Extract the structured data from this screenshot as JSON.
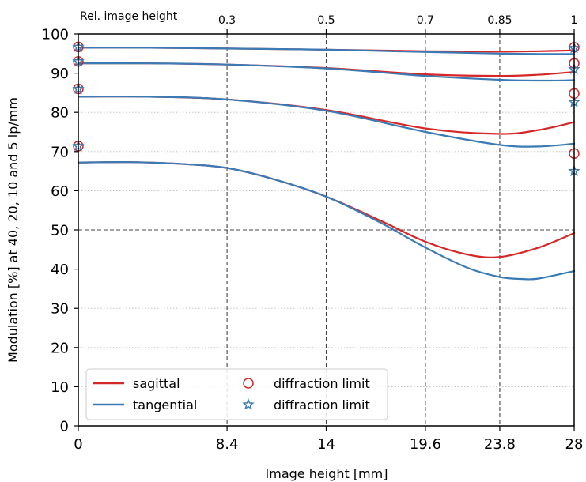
{
  "chart_data": {
    "type": "line",
    "title": "",
    "xlabel": "Image height [mm]",
    "ylabel": "Modulation [%] at 40, 20, 10 and 5 lp/mm",
    "top_axis_label": "Rel. image height",
    "xlim": [
      0,
      28
    ],
    "ylim": [
      0,
      100
    ],
    "x_ticks": [
      "0",
      "8.4",
      "14",
      "19.6",
      "23.8",
      "28"
    ],
    "x_tick_values": [
      0,
      8.4,
      14,
      19.6,
      23.8,
      28
    ],
    "y_ticks": [
      "0",
      "10",
      "20",
      "30",
      "40",
      "50",
      "60",
      "70",
      "80",
      "90",
      "100"
    ],
    "y_tick_values": [
      0,
      10,
      20,
      30,
      40,
      50,
      60,
      70,
      80,
      90,
      100
    ],
    "top_ticks": [
      "0.3",
      "0.5",
      "0.7",
      "0.85",
      "1"
    ],
    "top_tick_x_values": [
      8.4,
      14,
      19.6,
      23.8,
      28
    ],
    "grid": "dotted horizontal at every 10%; dashed vertical at x ticks; dashed horizontal at 50%",
    "legend_position": "bottom-left",
    "colors": {
      "sagittal": "#d62728",
      "tangential": "#3a7ab5"
    },
    "series": [
      {
        "name": "sagittal",
        "curve": "5 lp/mm",
        "x": [
          0,
          4,
          8.4,
          14,
          19.6,
          23.8,
          26,
          28
        ],
        "y": [
          96.5,
          96.5,
          96.3,
          96.0,
          95.6,
          95.5,
          95.6,
          95.8
        ]
      },
      {
        "name": "tangential",
        "curve": "5 lp/mm",
        "x": [
          0,
          4,
          8.4,
          14,
          19.6,
          23.8,
          26,
          28
        ],
        "y": [
          96.5,
          96.5,
          96.3,
          96.0,
          95.4,
          95.0,
          94.9,
          94.9
        ]
      },
      {
        "name": "sagittal",
        "curve": "10 lp/mm",
        "x": [
          0,
          4,
          8.4,
          14,
          19.6,
          23.8,
          26,
          28
        ],
        "y": [
          92.5,
          92.5,
          92.2,
          91.3,
          89.7,
          89.3,
          89.6,
          90.3
        ]
      },
      {
        "name": "tangential",
        "curve": "10 lp/mm",
        "x": [
          0,
          4,
          8.4,
          14,
          19.6,
          23.8,
          26,
          28
        ],
        "y": [
          92.5,
          92.5,
          92.2,
          91.2,
          89.3,
          88.3,
          88.1,
          88.2
        ]
      },
      {
        "name": "sagittal",
        "curve": "20 lp/mm",
        "x": [
          0,
          4,
          8.4,
          14,
          19.6,
          23.8,
          26,
          28
        ],
        "y": [
          84.0,
          84.0,
          83.3,
          80.6,
          75.9,
          74.5,
          75.5,
          77.5
        ]
      },
      {
        "name": "tangential",
        "curve": "20 lp/mm",
        "x": [
          0,
          4,
          8.4,
          14,
          19.6,
          23.8,
          26,
          28
        ],
        "y": [
          84.0,
          84.0,
          83.3,
          80.4,
          75.0,
          71.7,
          71.3,
          72.0
        ]
      },
      {
        "name": "sagittal",
        "curve": "40 lp/mm",
        "x": [
          0,
          3,
          6,
          8.4,
          11,
          14,
          17,
          19.6,
          22,
          23.8,
          26,
          28
        ],
        "y": [
          67.2,
          67.3,
          66.8,
          65.8,
          63.0,
          58.5,
          52.5,
          47.0,
          43.7,
          43.1,
          45.5,
          49.2
        ]
      },
      {
        "name": "tangential",
        "curve": "40 lp/mm",
        "x": [
          0,
          3,
          6,
          8.4,
          11,
          14,
          17,
          19.6,
          22,
          23.8,
          25,
          26,
          28
        ],
        "y": [
          67.2,
          67.3,
          66.8,
          65.8,
          63.0,
          58.5,
          52.0,
          45.5,
          40.3,
          38.0,
          37.5,
          37.6,
          39.5
        ]
      }
    ],
    "diffraction_limit": {
      "x": [
        0,
        28
      ],
      "sagittal": [
        [
          96.7,
          96.6
        ],
        [
          93.0,
          92.5
        ],
        [
          86.0,
          84.8
        ],
        [
          71.4,
          69.5
        ]
      ],
      "tangential": [
        [
          96.7,
          96.4
        ],
        [
          93.0,
          91.0
        ],
        [
          86.0,
          82.6
        ],
        [
          71.4,
          65.0
        ]
      ]
    },
    "legend": [
      {
        "label": "sagittal",
        "kind": "line",
        "series": "sagittal"
      },
      {
        "label": "tangential",
        "kind": "line",
        "series": "tangential"
      },
      {
        "label": "diffraction limit",
        "kind": "circle-marker",
        "series": "sagittal"
      },
      {
        "label": "diffraction limit",
        "kind": "star-marker",
        "series": "tangential"
      }
    ]
  }
}
